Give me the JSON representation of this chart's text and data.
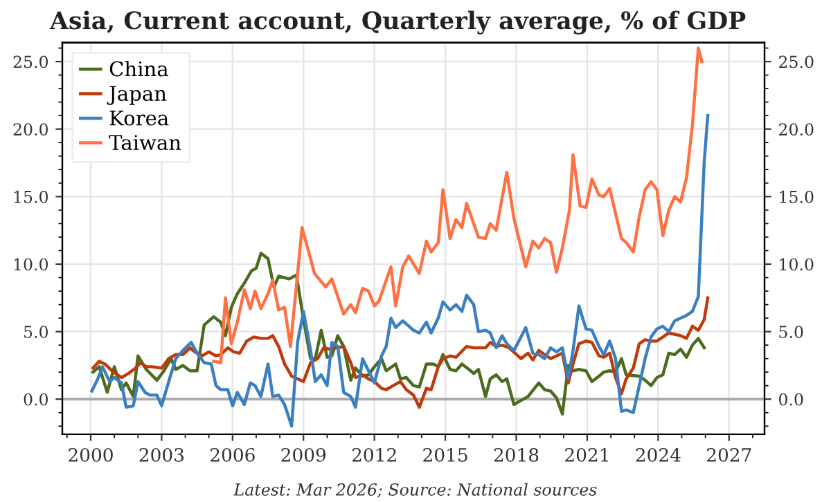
{
  "chart_data": {
    "type": "line",
    "title": "Asia, Current account, Quarterly average, % of GDP",
    "annotations": [
      "Latest: Mar 2026; Source: National sources"
    ],
    "xlim": [
      1998.8,
      2028.5
    ],
    "xticks": [
      2000,
      2003,
      2006,
      2009,
      2012,
      2015,
      2018,
      2021,
      2024,
      2027
    ],
    "ylim": [
      -2.6,
      26.4
    ],
    "yticks": [
      {
        "value": 0,
        "label": "0.0"
      },
      {
        "value": 5,
        "label": "5.0"
      },
      {
        "value": 10,
        "label": "10.0"
      },
      {
        "value": 15,
        "label": "15.0"
      },
      {
        "value": 20,
        "label": "20.0"
      },
      {
        "value": 25,
        "label": "25.0"
      }
    ],
    "y2lim": [
      -2.6,
      26.4
    ],
    "y2ticks": [
      {
        "value": 0,
        "label": "0.0"
      },
      {
        "value": 5,
        "label": "5.0"
      },
      {
        "value": 10,
        "label": "10.0"
      },
      {
        "value": 15,
        "label": "15.0"
      },
      {
        "value": 20,
        "label": "20.0"
      },
      {
        "value": 25,
        "label": "25.0"
      }
    ],
    "grid": true,
    "legend": "top left",
    "marker": "none",
    "line_style": "solid",
    "ref_lines": [
      {
        "axis": "y",
        "value": 0,
        "color": "#aaaaaa"
      }
    ],
    "series": [
      {
        "name": "China",
        "color": "#4b6b1e",
        "x": [
          2000.1,
          2000.36,
          2000.7,
          2001.0,
          2001.3,
          2001.5,
          2001.8,
          2002.0,
          2002.35,
          2002.8,
          2003.1,
          2003.4,
          2003.6,
          2003.9,
          2004.2,
          2004.5,
          2004.8,
          2005.2,
          2005.5,
          2005.7,
          2005.95,
          2006.2,
          2006.5,
          2006.8,
          2007.0,
          2007.2,
          2007.5,
          2007.75,
          2007.95,
          2008.4,
          2008.7,
          2009.0,
          2009.3,
          2009.5,
          2009.75,
          2010.0,
          2010.2,
          2010.45,
          2010.7,
          2011.0,
          2011.2,
          2011.5,
          2011.75,
          2012.0,
          2012.3,
          2012.5,
          2012.9,
          2013.1,
          2013.35,
          2013.65,
          2013.9,
          2014.2,
          2014.5,
          2014.7,
          2014.9,
          2015.2,
          2015.45,
          2015.7,
          2016.0,
          2016.2,
          2016.4,
          2016.7,
          2016.9,
          2017.15,
          2017.4,
          2017.6,
          2017.9,
          2018.2,
          2018.5,
          2018.95,
          2019.2,
          2019.45,
          2019.7,
          2019.95,
          2020.2,
          2020.4,
          2020.65,
          2020.95,
          2021.2,
          2021.5,
          2021.7,
          2021.95,
          2022.2,
          2022.45,
          2022.65,
          2023.2,
          2023.45,
          2023.7,
          2023.95,
          2024.2,
          2024.45,
          2024.7,
          2024.95,
          2025.2,
          2025.45,
          2025.7,
          2025.95
        ],
        "values": [
          2.0,
          2.4,
          0.5,
          2.4,
          0.7,
          1.2,
          0.2,
          3.2,
          2.2,
          1.4,
          2.1,
          3.0,
          2.2,
          2.5,
          2.1,
          2.1,
          5.5,
          6.1,
          5.7,
          4.7,
          6.8,
          7.8,
          8.6,
          9.5,
          9.7,
          10.8,
          10.4,
          8.3,
          9.1,
          8.9,
          9.2,
          5.9,
          3.0,
          3.0,
          5.1,
          3.1,
          3.2,
          4.7,
          3.9,
          1.4,
          2.3,
          1.7,
          1.8,
          2.4,
          3.0,
          2.1,
          2.6,
          1.5,
          1.6,
          1.0,
          0.9,
          2.6,
          2.6,
          2.4,
          3.3,
          2.2,
          2.1,
          2.6,
          2.2,
          1.9,
          2.2,
          0.2,
          1.5,
          1.8,
          1.3,
          1.5,
          -0.4,
          -0.1,
          0.2,
          1.2,
          0.7,
          0.6,
          0.1,
          -1.1,
          2.5,
          2.1,
          2.2,
          2.1,
          1.3,
          1.7,
          2.0,
          2.1,
          2.0,
          3.0,
          1.8,
          1.7,
          1.4,
          1.0,
          1.6,
          1.8,
          3.4,
          3.3,
          3.7,
          3.1,
          4.0,
          4.5,
          3.8
        ]
      },
      {
        "name": "Japan",
        "color": "#c0390b",
        "x": [
          2000.1,
          2000.36,
          2000.6,
          2000.9,
          2001.3,
          2001.6,
          2001.9,
          2002.1,
          2002.35,
          2002.6,
          2003.0,
          2003.3,
          2003.6,
          2003.9,
          2004.2,
          2004.4,
          2004.7,
          2005.0,
          2005.3,
          2005.5,
          2005.8,
          2006.05,
          2006.3,
          2006.6,
          2006.9,
          2007.2,
          2007.5,
          2007.7,
          2007.95,
          2008.2,
          2008.5,
          2009.0,
          2009.3,
          2009.6,
          2009.85,
          2010.1,
          2010.4,
          2010.7,
          2011.0,
          2011.2,
          2011.5,
          2011.75,
          2012.0,
          2012.3,
          2012.5,
          2012.8,
          2013.1,
          2013.35,
          2013.65,
          2013.9,
          2014.2,
          2014.4,
          2014.7,
          2014.9,
          2015.2,
          2015.45,
          2015.9,
          2016.2,
          2016.7,
          2016.9,
          2017.15,
          2017.4,
          2017.7,
          2018.2,
          2018.5,
          2018.7,
          2018.95,
          2019.2,
          2019.45,
          2019.7,
          2019.95,
          2020.2,
          2020.4,
          2020.65,
          2020.95,
          2021.2,
          2021.5,
          2021.7,
          2021.95,
          2022.2,
          2022.45,
          2022.65,
          2022.95,
          2023.2,
          2023.45,
          2023.7,
          2023.95,
          2024.2,
          2024.45,
          2024.7,
          2024.95,
          2025.2,
          2025.45,
          2025.7,
          2025.95,
          2026.1
        ],
        "values": [
          2.3,
          2.8,
          2.6,
          2.1,
          1.6,
          1.9,
          2.3,
          2.7,
          2.4,
          2.4,
          2.3,
          3.0,
          3.3,
          3.3,
          3.8,
          3.5,
          3.2,
          3.5,
          3.2,
          3.3,
          3.8,
          3.5,
          3.4,
          4.3,
          4.6,
          4.5,
          4.5,
          4.7,
          3.9,
          2.6,
          1.7,
          1.3,
          2.7,
          3.0,
          3.8,
          3.7,
          3.8,
          3.9,
          2.7,
          1.6,
          1.8,
          1.5,
          1.3,
          0.8,
          0.7,
          1.0,
          1.3,
          0.7,
          0.3,
          -0.6,
          0.8,
          0.7,
          2.4,
          3.0,
          3.2,
          3.1,
          3.9,
          3.8,
          3.8,
          4.2,
          3.9,
          4.0,
          3.8,
          3.0,
          3.4,
          2.9,
          3.6,
          3.3,
          3.0,
          3.2,
          3.4,
          1.2,
          2.6,
          4.1,
          4.3,
          4.2,
          3.2,
          3.1,
          3.4,
          1.6,
          0.4,
          1.5,
          2.3,
          4.1,
          4.4,
          4.3,
          4.3,
          4.6,
          4.9,
          4.8,
          4.7,
          4.5,
          5.4,
          5.1,
          5.9,
          7.5
        ]
      },
      {
        "name": "Korea",
        "color": "#3a7fc0",
        "x": [
          2000.05,
          2000.3,
          2000.5,
          2000.8,
          2001.0,
          2001.3,
          2001.5,
          2001.8,
          2002.0,
          2002.3,
          2002.5,
          2002.8,
          2003.0,
          2003.3,
          2003.6,
          2003.9,
          2004.25,
          2004.5,
          2004.8,
          2005.1,
          2005.3,
          2005.5,
          2005.8,
          2006.0,
          2006.2,
          2006.5,
          2006.75,
          2006.95,
          2007.2,
          2007.5,
          2007.7,
          2007.95,
          2008.2,
          2008.5,
          2008.75,
          2009.0,
          2009.3,
          2009.5,
          2009.75,
          2010.0,
          2010.2,
          2010.45,
          2010.7,
          2011.0,
          2011.2,
          2011.5,
          2011.75,
          2012.0,
          2012.3,
          2012.5,
          2012.7,
          2012.9,
          2013.2,
          2013.4,
          2013.65,
          2013.9,
          2014.2,
          2014.4,
          2014.7,
          2014.9,
          2015.2,
          2015.45,
          2015.7,
          2015.9,
          2016.2,
          2016.4,
          2016.7,
          2016.9,
          2017.15,
          2017.4,
          2017.6,
          2017.9,
          2018.2,
          2018.4,
          2018.7,
          2018.95,
          2019.2,
          2019.45,
          2019.7,
          2019.95,
          2020.2,
          2020.4,
          2020.65,
          2020.95,
          2021.2,
          2021.5,
          2021.7,
          2021.95,
          2022.2,
          2022.45,
          2022.65,
          2022.95,
          2023.2,
          2023.45,
          2023.7,
          2023.95,
          2024.2,
          2024.45,
          2024.7,
          2024.95,
          2025.2,
          2025.45,
          2025.7,
          2025.95,
          2026.1
        ],
        "values": [
          0.6,
          1.5,
          2.4,
          1.3,
          1.6,
          1.2,
          -0.6,
          -0.5,
          1.3,
          0.5,
          0.3,
          0.3,
          -0.5,
          1.3,
          3.0,
          3.6,
          4.2,
          3.4,
          2.7,
          2.6,
          1.0,
          0.7,
          0.7,
          -0.5,
          0.5,
          -0.4,
          1.2,
          1.0,
          0.2,
          2.6,
          0.2,
          0.3,
          -0.4,
          -2.0,
          4.2,
          6.5,
          3.6,
          1.3,
          1.8,
          1.0,
          4.2,
          3.9,
          0.5,
          0.2,
          -0.6,
          3.0,
          2.1,
          1.2,
          3.2,
          3.9,
          6.0,
          5.3,
          5.8,
          5.5,
          5.1,
          4.9,
          5.7,
          4.9,
          6.0,
          7.2,
          6.6,
          7.0,
          6.5,
          7.7,
          7.0,
          5.0,
          5.1,
          4.9,
          3.8,
          4.7,
          4.1,
          3.6,
          4.6,
          5.3,
          3.4,
          3.3,
          3.0,
          3.8,
          3.5,
          3.8,
          1.5,
          3.6,
          6.9,
          5.2,
          5.1,
          3.9,
          3.3,
          4.3,
          3.0,
          -0.9,
          -0.8,
          -1.0,
          1.0,
          3.0,
          4.6,
          5.2,
          5.4,
          5.0,
          5.8,
          6.0,
          6.2,
          6.5,
          7.6,
          17.6,
          21.0
        ]
      },
      {
        "name": "Taiwan",
        "color": "#ff7043",
        "x": [
          2005.2,
          2005.5,
          2005.7,
          2005.95,
          2006.2,
          2006.5,
          2006.75,
          2006.95,
          2007.2,
          2007.5,
          2007.7,
          2007.95,
          2008.2,
          2008.45,
          2008.94,
          2009.47,
          2009.94,
          2010.2,
          2010.7,
          2011.0,
          2011.2,
          2011.5,
          2011.75,
          2012.0,
          2012.2,
          2012.7,
          2012.9,
          2013.2,
          2013.45,
          2013.9,
          2014.2,
          2014.4,
          2014.7,
          2014.9,
          2015.2,
          2015.45,
          2015.7,
          2015.9,
          2016.4,
          2016.7,
          2016.9,
          2017.15,
          2017.6,
          2017.9,
          2018.4,
          2018.7,
          2018.95,
          2019.2,
          2019.45,
          2019.7,
          2019.95,
          2020.25,
          2020.4,
          2020.7,
          2020.95,
          2021.2,
          2021.5,
          2021.7,
          2021.95,
          2022.45,
          2022.65,
          2022.95,
          2023.2,
          2023.45,
          2023.7,
          2023.95,
          2024.2,
          2024.45,
          2024.7,
          2024.95,
          2025.2,
          2025.45,
          2025.7,
          2025.85
        ],
        "values": [
          2.8,
          2.7,
          7.5,
          4.1,
          5.7,
          8.1,
          6.7,
          8.0,
          6.7,
          7.8,
          8.8,
          6.6,
          6.8,
          3.9,
          12.7,
          9.3,
          8.3,
          8.9,
          6.3,
          7.0,
          6.4,
          8.2,
          8.0,
          6.9,
          7.3,
          9.8,
          6.9,
          9.8,
          10.6,
          9.3,
          11.7,
          10.9,
          11.6,
          15.5,
          11.9,
          13.3,
          12.7,
          14.5,
          12.0,
          11.9,
          13.0,
          12.5,
          16.8,
          13.4,
          9.8,
          11.7,
          11.2,
          11.9,
          11.6,
          9.4,
          11.2,
          14.0,
          18.1,
          14.3,
          14.2,
          16.3,
          15.1,
          15.0,
          15.6,
          11.9,
          11.6,
          10.9,
          13.5,
          15.5,
          16.1,
          15.5,
          12.1,
          14.0,
          15.0,
          14.6,
          16.4,
          20.3,
          26.0,
          25.0
        ]
      }
    ]
  }
}
